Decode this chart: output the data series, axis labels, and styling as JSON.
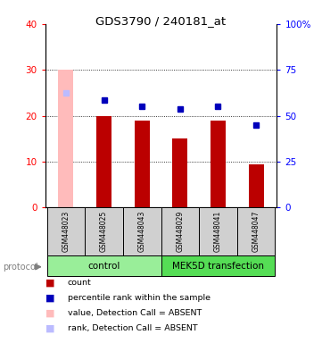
{
  "title": "GDS3790 / 240181_at",
  "samples": [
    "GSM448023",
    "GSM448025",
    "GSM448043",
    "GSM448029",
    "GSM448041",
    "GSM448047"
  ],
  "bar_values": [
    30.0,
    20.0,
    19.0,
    15.0,
    19.0,
    9.5
  ],
  "bar_absent": [
    true,
    false,
    false,
    false,
    false,
    false
  ],
  "rank_values": [
    25.0,
    23.5,
    22.0,
    21.5,
    22.0,
    18.0
  ],
  "rank_absent": [
    true,
    false,
    false,
    false,
    false,
    false
  ],
  "left_ylim": [
    0,
    40
  ],
  "left_yticks": [
    0,
    10,
    20,
    30,
    40
  ],
  "left_yticklabels": [
    "0",
    "10",
    "20",
    "30",
    "40"
  ],
  "right_yticks": [
    0,
    10,
    20,
    30,
    40
  ],
  "right_yticklabels": [
    "0",
    "25",
    "50",
    "75",
    "100%"
  ],
  "bar_color_present": "#bb0000",
  "bar_color_absent": "#ffbbbb",
  "rank_color_present": "#0000bb",
  "rank_color_absent": "#bbbbff",
  "group_info": [
    {
      "label": "control",
      "start": 0,
      "end": 3,
      "color": "#99ee99"
    },
    {
      "label": "MEK5D transfection",
      "start": 3,
      "end": 6,
      "color": "#55dd55"
    }
  ],
  "protocol_label": "protocol",
  "bar_width": 0.4,
  "legend_items": [
    {
      "label": "count",
      "color": "#bb0000"
    },
    {
      "label": "percentile rank within the sample",
      "color": "#0000bb"
    },
    {
      "label": "value, Detection Call = ABSENT",
      "color": "#ffbbbb"
    },
    {
      "label": "rank, Detection Call = ABSENT",
      "color": "#bbbbff"
    }
  ]
}
